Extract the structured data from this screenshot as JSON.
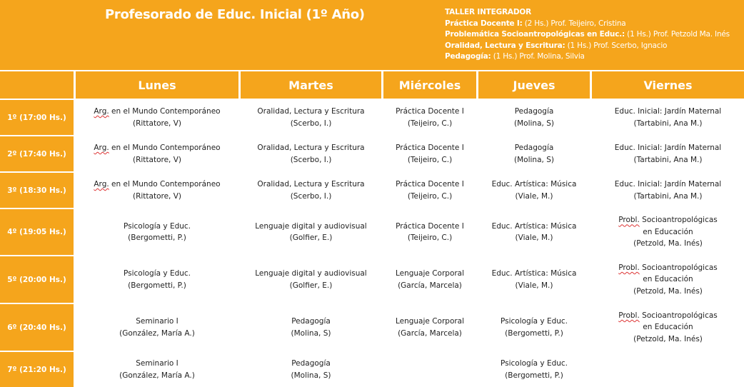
{
  "header": {
    "title": "Profesorado  de Educ. Inicial (1º Año)",
    "info": [
      {
        "bold": "TALLER  INTEGRADOR",
        "rest": ""
      },
      {
        "bold": "Práctica Docente I:",
        "rest": " (2 Hs.) Prof. Teijeiro, Cristina"
      },
      {
        "bold": "Problemática Socioantropológicas  en Educ.:",
        "rest": " (1 Hs.) Prof. Petzold Ma. Inés"
      },
      {
        "bold": "Oralidad, Lectura y Escritura:",
        "rest": " (1 Hs.) Prof. Scerbo, Ignacio"
      },
      {
        "bold": "Pedagogía:",
        "rest": " (1 Hs.) Prof. Molina, Silvia"
      }
    ]
  },
  "days": [
    "Lunes",
    "Martes",
    "Miércoles",
    "Jueves",
    "Viernes"
  ],
  "slots": [
    "1º (17:00 Hs.)",
    "2º (17:40 Hs.)",
    "3º (18:30 Hs.)",
    "4º (19:05 Hs.)",
    "5º (20:00 Hs.)",
    "6º (20:40 Hs.)",
    "7º (21:20 Hs.)"
  ],
  "grid": [
    [
      {
        "l1a": "Arg.",
        "l1b": " en el Mundo Contemporáneo",
        "l2": "(Rittatore, V)"
      },
      {
        "l1a": "",
        "l1b": "Oralidad, Lectura y Escritura",
        "l2": "(Scerbo, I.)"
      },
      {
        "l1a": "",
        "l1b": "Práctica Docente I",
        "l2": "(Teijeiro, C.)"
      },
      {
        "l1a": "",
        "l1b": "Pedagogía",
        "l2": "(Molina, S)"
      },
      {
        "l1a": "",
        "l1b": "Educ. Inicial: Jardín Maternal",
        "l2": "(Tartabini, Ana M.)"
      }
    ],
    [
      {
        "l1a": "Arg.",
        "l1b": " en el Mundo Contemporáneo",
        "l2": "(Rittatore, V)"
      },
      {
        "l1a": "",
        "l1b": "Oralidad, Lectura y Escritura",
        "l2": "(Scerbo, I.)"
      },
      {
        "l1a": "",
        "l1b": "Práctica Docente I",
        "l2": "(Teijeiro, C.)"
      },
      {
        "l1a": "",
        "l1b": "Pedagogía",
        "l2": "(Molina, S)"
      },
      {
        "l1a": "",
        "l1b": "Educ. Inicial: Jardín Maternal",
        "l2": "(Tartabini, Ana M.)"
      }
    ],
    [
      {
        "l1a": "Arg.",
        "l1b": " en el Mundo Contemporáneo",
        "l2": "(Rittatore, V)"
      },
      {
        "l1a": "",
        "l1b": "Oralidad, Lectura y Escritura",
        "l2": "(Scerbo, I.)"
      },
      {
        "l1a": "",
        "l1b": "Práctica Docente I",
        "l2": "(Teijeiro, C.)"
      },
      {
        "l1a": "",
        "l1b": "Educ. Artística: Música",
        "l2": "(Viale, M.)"
      },
      {
        "l1a": "",
        "l1b": "Educ. Inicial: Jardín Maternal",
        "l2": "(Tartabini, Ana M.)"
      }
    ],
    [
      {
        "l1a": "",
        "l1b": "Psicología y Educ.",
        "l2": "(Bergometti, P.)"
      },
      {
        "l1a": "",
        "l1b": "Lenguaje digital y audiovisual",
        "l2": "(Golfier, E.)"
      },
      {
        "l1a": "",
        "l1b": "Práctica Docente I",
        "l2": "(Teijeiro, C.)"
      },
      {
        "l1a": "",
        "l1b": "Educ. Artística: Música",
        "l2": "(Viale, M.)"
      },
      {
        "l1a": "Probl.",
        "l1b": " Socioantropológicas",
        "l2": "en Educación",
        "l3": "(Petzold, Ma. Inés)"
      }
    ],
    [
      {
        "l1a": "",
        "l1b": "Psicología y Educ.",
        "l2": "(Bergometti, P.)"
      },
      {
        "l1a": "",
        "l1b": "Lenguaje digital y audiovisual",
        "l2": "(Golfier, E.)"
      },
      {
        "l1a": "",
        "l1b": "Lenguaje Corporal",
        "l2": "(García, Marcela)"
      },
      {
        "l1a": "",
        "l1b": "Educ. Artística: Música",
        "l2": "(Viale, M.)"
      },
      {
        "l1a": "Probl.",
        "l1b": " Socioantropológicas",
        "l2": "en Educación",
        "l3": "(Petzold, Ma. Inés)"
      }
    ],
    [
      {
        "l1a": "",
        "l1b": "Seminario I",
        "l2": "(González, María A.)"
      },
      {
        "l1a": "",
        "l1b": "Pedagogía",
        "l2": "(Molina, S)"
      },
      {
        "l1a": "",
        "l1b": "Lenguaje Corporal",
        "l2": "(García, Marcela)"
      },
      {
        "l1a": "",
        "l1b": "Psicología y Educ.",
        "l2": "(Bergometti, P.)"
      },
      {
        "l1a": "Probl.",
        "l1b": " Socioantropológicas",
        "l2": "en Educación",
        "l3": "(Petzold, Ma. Inés)"
      }
    ],
    [
      {
        "l1a": "",
        "l1b": "Seminario I",
        "l2": "(González, María A.)"
      },
      {
        "l1a": "",
        "l1b": "Pedagogía",
        "l2": "(Molina, S)"
      },
      null,
      {
        "l1a": "",
        "l1b": "Psicología y Educ.",
        "l2": "(Bergometti, P.)"
      },
      null
    ]
  ]
}
